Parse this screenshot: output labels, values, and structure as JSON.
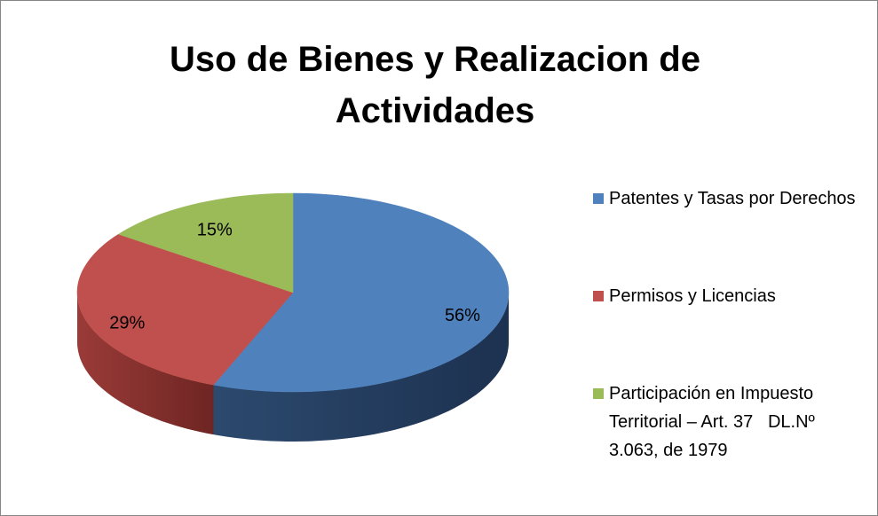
{
  "chart_data": {
    "type": "pie3d",
    "title": "Uso de Bienes y Realizacion de Actividades",
    "categories": [
      "Patentes y Tasas por Derechos",
      "Permisos y Licencias",
      "Participación en Impuesto Territorial – Art. 37   DL.Nº 3.063, de 1979"
    ],
    "values": [
      56,
      29,
      15
    ],
    "value_labels": [
      "56%",
      "29%",
      "15%"
    ],
    "colors": [
      "#4f81bd",
      "#c0504d",
      "#9bbb59"
    ],
    "legend": "right"
  }
}
